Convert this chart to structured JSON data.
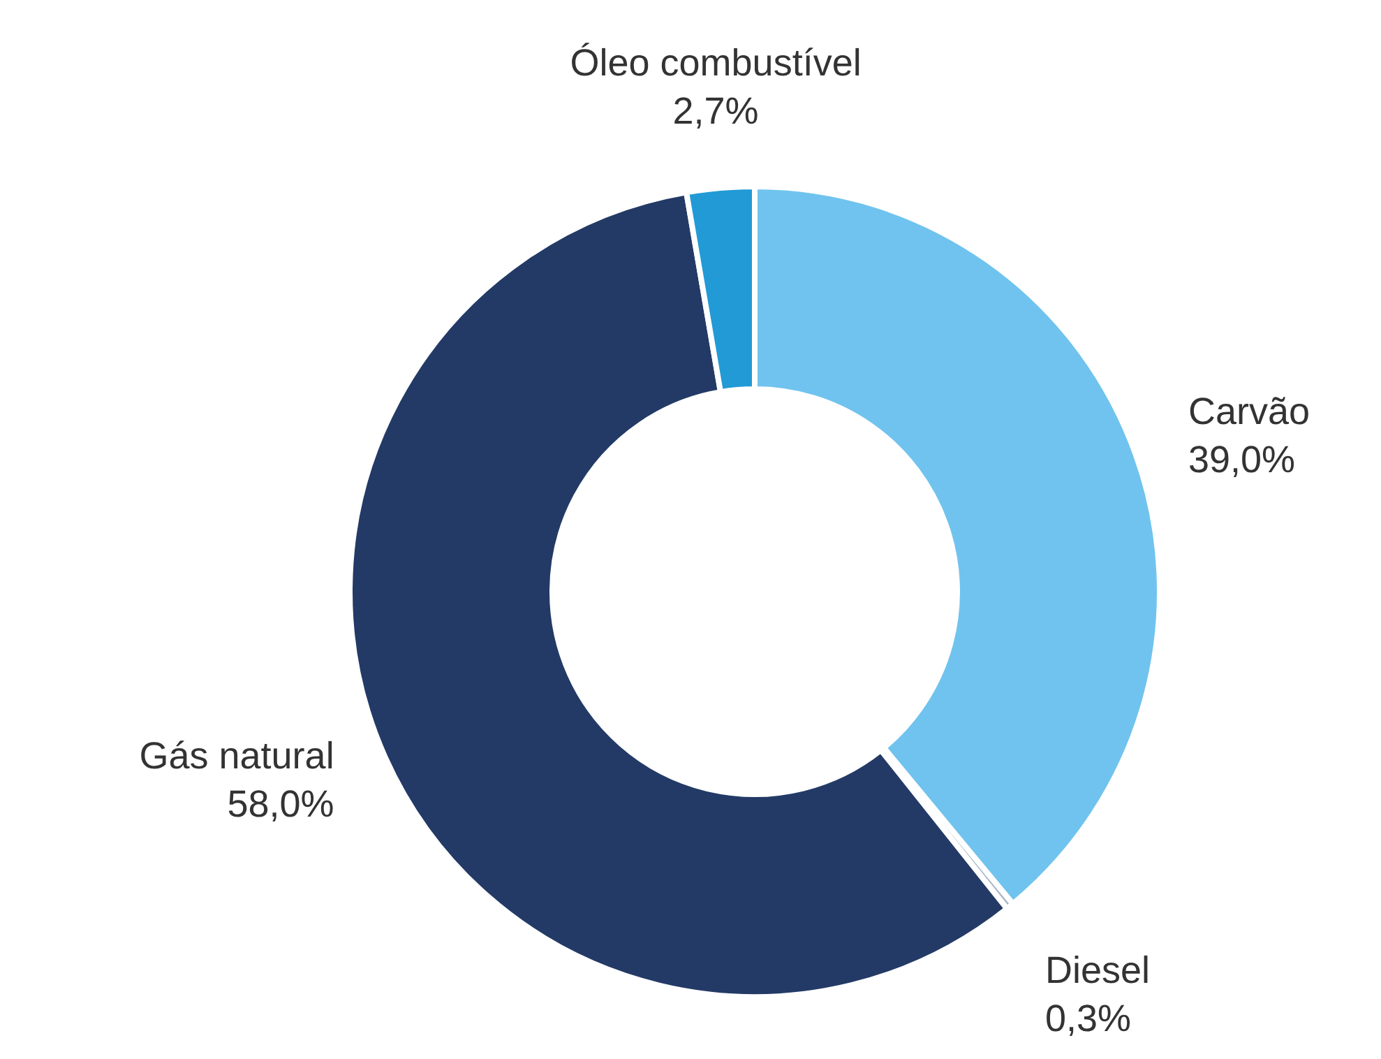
{
  "chart_data": {
    "type": "donut",
    "categories": [
      "Carvão",
      "Diesel",
      "Gás natural",
      "Óleo combustível"
    ],
    "values": [
      39.0,
      0.3,
      58.0,
      2.7
    ],
    "colors": [
      "#70c3ee",
      "#a9b8c8",
      "#233a66",
      "#229ad6"
    ],
    "value_labels": [
      "39,0%",
      "0,3%",
      "58,0%",
      "2,7%"
    ]
  }
}
